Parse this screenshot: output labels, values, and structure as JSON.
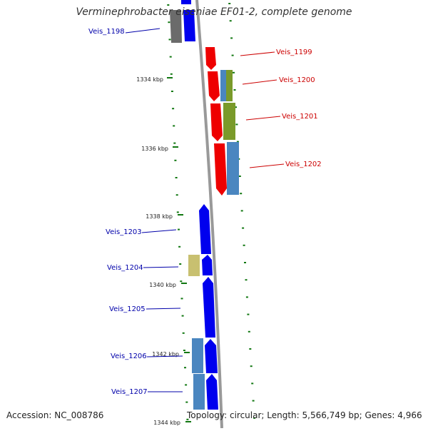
{
  "title": "Verminephrobacter eiseniae EF01-2, complete genome",
  "footer": {
    "accession": "Accession: NC_008786",
    "summary": "Topology: circular; Length: 5,566,749 bp; Genes: 4,966"
  },
  "colors": {
    "forward_cds": "#0000ee",
    "reverse_cds": "#ee0000",
    "other_left": "#666666",
    "olive": "#7a9a2a",
    "steel": "#4a86c0",
    "tan": "#c8c070",
    "backbone": "#999999",
    "tick": "#117711"
  },
  "kbp_labels": [
    "1334 kbp",
    "1336 kbp",
    "1338 kbp",
    "1340 kbp",
    "1342 kbp",
    "1344 kbp"
  ],
  "genes": [
    {
      "label": "Veis_1198",
      "strand": "left"
    },
    {
      "label": "Veis_1199",
      "strand": "right"
    },
    {
      "label": "Veis_1200",
      "strand": "right"
    },
    {
      "label": "Veis_1201",
      "strand": "right"
    },
    {
      "label": "Veis_1202",
      "strand": "right"
    },
    {
      "label": "Veis_1203",
      "strand": "left"
    },
    {
      "label": "Veis_1204",
      "strand": "left"
    },
    {
      "label": "Veis_1205",
      "strand": "left"
    },
    {
      "label": "Veis_1206",
      "strand": "left"
    },
    {
      "label": "Veis_1207",
      "strand": "left"
    }
  ]
}
